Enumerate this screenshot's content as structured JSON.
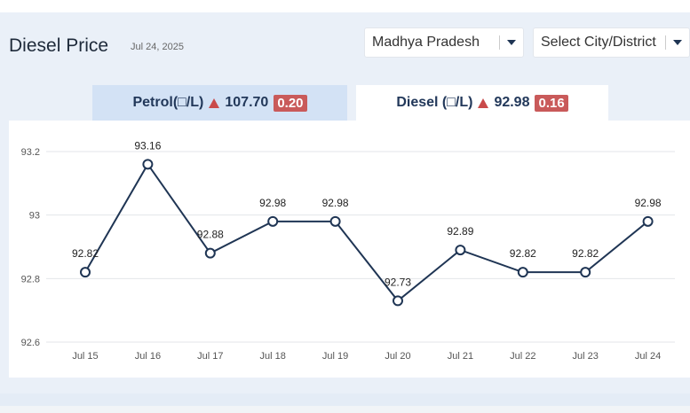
{
  "header": {
    "title": "Diesel Price",
    "date": "Jul 24, 2025",
    "state_select": "Madhya Pradesh",
    "city_select": "Select City/District"
  },
  "tabs": [
    {
      "label": "Petrol(□/L)",
      "price": "107.70",
      "change": "0.20",
      "active": false
    },
    {
      "label": "Diesel (□/L)",
      "price": "92.98",
      "change": "0.16",
      "active": true
    }
  ],
  "colors": {
    "line": "#1f3554",
    "up": "#c94a4a",
    "badge": "#c95a5a"
  },
  "chart_data": {
    "type": "line",
    "categories": [
      "Jul 15",
      "Jul 16",
      "Jul 17",
      "Jul 18",
      "Jul 19",
      "Jul 20",
      "Jul 21",
      "Jul 22",
      "Jul 23",
      "Jul 24"
    ],
    "values": [
      92.82,
      93.16,
      92.88,
      92.98,
      92.98,
      92.73,
      92.89,
      92.82,
      92.82,
      92.98
    ],
    "yticks": [
      93.2,
      93,
      92.8,
      92.6
    ],
    "ylim": [
      92.6,
      93.2
    ],
    "grid": true
  }
}
